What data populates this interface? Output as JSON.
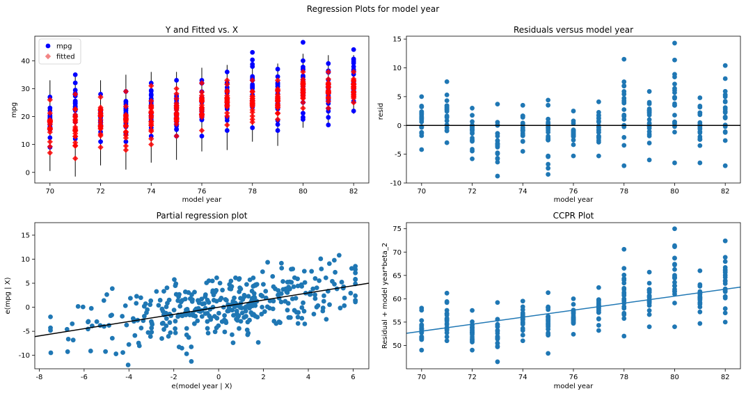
{
  "figure": {
    "suptitle": "Regression Plots for model year"
  },
  "colors": {
    "mpg": "#0000ff",
    "fitted": "#ff0000",
    "fitted_marker": "#f07070",
    "scatter": "#1f77b4",
    "line": "#000000",
    "ci": "#000000"
  },
  "chart_data": [
    {
      "id": "y-fitted",
      "type": "scatter",
      "title": "Y and Fitted vs. X",
      "xlabel": "model year",
      "ylabel": "mpg",
      "xlim": [
        69.4,
        82.6
      ],
      "ylim": [
        -3.8,
        48.8
      ],
      "xticks": [
        70,
        72,
        74,
        76,
        78,
        80,
        82
      ],
      "yticks": [
        0,
        10,
        20,
        30,
        40
      ],
      "legend": {
        "placement": "top-left",
        "entries": [
          "mpg",
          "fitted"
        ]
      },
      "years": [
        70,
        71,
        72,
        73,
        74,
        75,
        76,
        77,
        78,
        79,
        80,
        81,
        82
      ],
      "mpg_range": [
        [
          9,
          27
        ],
        [
          12,
          35
        ],
        [
          11,
          28
        ],
        [
          11,
          29
        ],
        [
          13,
          32
        ],
        [
          13,
          33
        ],
        [
          13,
          33
        ],
        [
          15,
          36
        ],
        [
          16,
          43
        ],
        [
          15,
          37
        ],
        [
          19,
          46.6
        ],
        [
          17,
          39
        ],
        [
          22,
          44
        ]
      ],
      "fitted_range": [
        [
          7,
          26
        ],
        [
          5,
          28
        ],
        [
          9,
          27
        ],
        [
          8,
          29
        ],
        [
          10,
          31
        ],
        [
          13,
          30
        ],
        [
          15,
          32
        ],
        [
          17,
          33
        ],
        [
          18,
          33
        ],
        [
          19,
          33
        ],
        [
          23,
          36
        ],
        [
          23,
          36
        ],
        [
          25,
          36
        ]
      ],
      "ci_range": [
        [
          0.5,
          33
        ],
        [
          -1.5,
          34.5
        ],
        [
          2.5,
          33
        ],
        [
          1,
          35
        ],
        [
          3.5,
          36
        ],
        [
          4.5,
          36
        ],
        [
          7.5,
          37.5
        ],
        [
          8,
          38.5
        ],
        [
          11,
          39
        ],
        [
          9.5,
          39
        ],
        [
          16,
          42.5
        ],
        [
          17,
          42
        ],
        [
          21,
          42
        ]
      ]
    },
    {
      "id": "residuals",
      "type": "scatter",
      "title": "Residuals versus model year",
      "xlabel": "model year",
      "ylabel": "resid",
      "xlim": [
        69.4,
        82.6
      ],
      "ylim": [
        -10,
        15.5
      ],
      "xticks": [
        70,
        72,
        74,
        76,
        78,
        80,
        82
      ],
      "yticks": [
        -10,
        -5,
        0,
        5,
        10,
        15
      ],
      "hline": 0,
      "years": [
        70,
        71,
        72,
        73,
        74,
        75,
        76,
        77,
        78,
        79,
        80,
        81,
        82
      ],
      "ranges": [
        [
          -4.2,
          5
        ],
        [
          -3,
          7.6
        ],
        [
          -5.8,
          3
        ],
        [
          -8.8,
          3.7
        ],
        [
          -4.5,
          3.5
        ],
        [
          -8.5,
          4.4
        ],
        [
          -5.3,
          2.5
        ],
        [
          -5.3,
          4.1
        ],
        [
          -7,
          11.5
        ],
        [
          -6,
          5.9
        ],
        [
          -6.5,
          14.3
        ],
        [
          -6.5,
          4.8
        ],
        [
          -7,
          10.4
        ]
      ]
    },
    {
      "id": "partial-regression",
      "type": "scatter",
      "title": "Partial regression plot",
      "xlabel": "e(model year | X)",
      "ylabel": "e(mpg | X)",
      "xlim": [
        -8.2,
        6.7
      ],
      "ylim": [
        -12.8,
        17.6
      ],
      "xticks": [
        -8,
        -6,
        -4,
        -2,
        0,
        2,
        4,
        6
      ],
      "yticks": [
        -10,
        -5,
        0,
        5,
        10,
        15
      ],
      "fit_line": {
        "x": [
          -8.2,
          6.7
        ],
        "y": [
          -6.1,
          5.0
        ]
      },
      "n_points": 392
    },
    {
      "id": "ccpr",
      "type": "scatter",
      "title": "CCPR Plot",
      "xlabel": "model year",
      "ylabel": "Residual + model year*beta_2",
      "xlim": [
        69.4,
        82.6
      ],
      "ylim": [
        45,
        76.3
      ],
      "xticks": [
        70,
        72,
        74,
        76,
        78,
        80,
        82
      ],
      "yticks": [
        50,
        55,
        60,
        65,
        70,
        75
      ],
      "fit_line": {
        "x": [
          69.4,
          82.6
        ],
        "y": [
          52.6,
          62.5
        ]
      },
      "years": [
        70,
        71,
        72,
        73,
        74,
        75,
        76,
        77,
        78,
        79,
        80,
        81,
        82
      ],
      "ranges": [
        [
          49,
          58
        ],
        [
          51,
          61.2
        ],
        [
          49,
          57.5
        ],
        [
          46.5,
          59.2
        ],
        [
          51,
          59.5
        ],
        [
          48.3,
          61.3
        ],
        [
          52.4,
          60
        ],
        [
          53.2,
          62.4
        ],
        [
          52,
          70.6
        ],
        [
          54,
          65.7
        ],
        [
          54,
          75
        ],
        [
          54.7,
          66
        ],
        [
          55,
          72.4
        ]
      ]
    }
  ]
}
